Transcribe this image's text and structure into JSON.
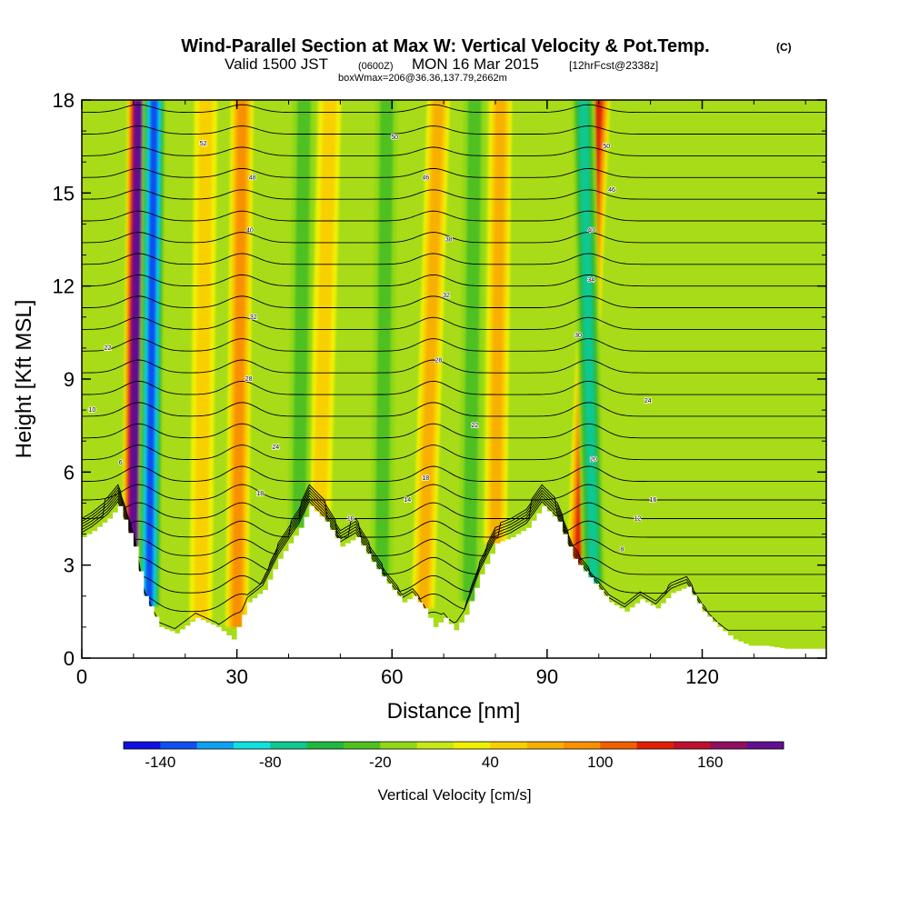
{
  "chart_data": {
    "type": "heatmap",
    "title": "Wind-Parallel Section at Max W: Vertical Velocity & Pot.Temp.",
    "title_suffix": "(C)",
    "subtitle_valid": "Valid 1500 JST",
    "subtitle_utc": "(0600Z)",
    "subtitle_date": "MON 16 Mar 2015",
    "subtitle_fcst": "[12hrFcst@2338z]",
    "subtitle_box": "boxWmax=206@36.36,137.79,2662m",
    "xlabel": "Distance [nm]",
    "ylabel": "Height [Kft MSL]",
    "xlim": [
      0,
      144
    ],
    "ylim": [
      0,
      18
    ],
    "x_ticks": [
      "0",
      "30",
      "60",
      "90",
      "120"
    ],
    "y_ticks": [
      "0",
      "3",
      "6",
      "9",
      "12",
      "15",
      "18"
    ],
    "colorbar_label": "Vertical Velocity [cm/s]",
    "colorbar_ticks": [
      "-140",
      "-80",
      "-20",
      "40",
      "100",
      "160"
    ],
    "colorbar_range": [
      -160,
      200
    ],
    "colorbar_colors": [
      "#1010e0",
      "#1050f0",
      "#10a0f0",
      "#10e0e0",
      "#10c890",
      "#20b840",
      "#50c020",
      "#90d818",
      "#c8e818",
      "#f0f000",
      "#f8d000",
      "#f8b000",
      "#f89000",
      "#f06000",
      "#e02000",
      "#c01030",
      "#901060",
      "#601090"
    ],
    "background_color": "#a8dc18",
    "updraft_bands": [
      {
        "x_top": 11,
        "x_bottom": 10,
        "w": 200
      },
      {
        "x_top": 31,
        "x_bottom": 30,
        "w": 70
      },
      {
        "x_top": 48,
        "x_bottom": 46,
        "w": 40
      },
      {
        "x_top": 69,
        "x_bottom": 66,
        "w": 60
      },
      {
        "x_top": 81,
        "x_bottom": 80,
        "w": 50
      },
      {
        "x_top": 100,
        "x_bottom": 96,
        "w": 120
      },
      {
        "x_top": 24,
        "x_bottom": 23,
        "w": 40
      }
    ],
    "downdraft_bands": [
      {
        "x_top": 14,
        "x_bottom": 13,
        "w": -140
      },
      {
        "x_top": 97,
        "x_bottom": 99,
        "w": -80
      },
      {
        "x_top": 43,
        "x_bottom": 42,
        "w": -30
      },
      {
        "x_top": 76,
        "x_bottom": 75,
        "w": -30
      },
      {
        "x_top": 59,
        "x_bottom": 58,
        "w": -30
      }
    ],
    "terrain_profile": [
      [
        0,
        3.9
      ],
      [
        2,
        4.1
      ],
      [
        5,
        4.5
      ],
      [
        7,
        4.9
      ],
      [
        10,
        3.6
      ],
      [
        12,
        2.0
      ],
      [
        15,
        1.0
      ],
      [
        18,
        0.8
      ],
      [
        22,
        1.3
      ],
      [
        26,
        1.0
      ],
      [
        29,
        0.6
      ],
      [
        32,
        1.8
      ],
      [
        35,
        2.2
      ],
      [
        38,
        3.2
      ],
      [
        42,
        4.2
      ],
      [
        44,
        4.9
      ],
      [
        47,
        4.4
      ],
      [
        50,
        3.6
      ],
      [
        53,
        3.9
      ],
      [
        56,
        3.1
      ],
      [
        59,
        2.4
      ],
      [
        62,
        1.8
      ],
      [
        64,
        2.0
      ],
      [
        66,
        1.6
      ],
      [
        68,
        1.0
      ],
      [
        70,
        1.3
      ],
      [
        72,
        0.9
      ],
      [
        74,
        1.4
      ],
      [
        77,
        2.7
      ],
      [
        80,
        3.7
      ],
      [
        83,
        3.9
      ],
      [
        86,
        4.2
      ],
      [
        89,
        4.9
      ],
      [
        92,
        4.4
      ],
      [
        95,
        3.2
      ],
      [
        99,
        2.4
      ],
      [
        102,
        1.8
      ],
      [
        105,
        1.5
      ],
      [
        108,
        1.9
      ],
      [
        111,
        1.6
      ],
      [
        114,
        2.1
      ],
      [
        117,
        2.3
      ],
      [
        120,
        1.5
      ],
      [
        123,
        1.0
      ],
      [
        126,
        0.6
      ],
      [
        129,
        0.4
      ],
      [
        132,
        0.4
      ],
      [
        136,
        0.3
      ],
      [
        140,
        0.3
      ],
      [
        144,
        0.3
      ]
    ],
    "theta_contours": {
      "levels_surface_kft": [
        0.9,
        1.5,
        2.1,
        2.7,
        3.3,
        3.9,
        4.5,
        5.1,
        5.7,
        6.4,
        7.1,
        7.8,
        8.5,
        9.2,
        9.9,
        10.6,
        11.3,
        12.0,
        12.7,
        13.4,
        14.1,
        14.8,
        15.5,
        16.2,
        16.9,
        17.6
      ],
      "wave_centers_nm": [
        11,
        31,
        68,
        98
      ],
      "wave_amplitude_kft": 0.6,
      "labels": [
        {
          "x": 2,
          "y": 8.0,
          "text": "10"
        },
        {
          "x": 5,
          "y": 10.0,
          "text": "22"
        },
        {
          "x": 7.5,
          "y": 6.3,
          "text": "6"
        },
        {
          "x": 23.5,
          "y": 16.6,
          "text": "52"
        },
        {
          "x": 33,
          "y": 15.5,
          "text": "48"
        },
        {
          "x": 32.5,
          "y": 13.8,
          "text": "40"
        },
        {
          "x": 33.2,
          "y": 11.0,
          "text": "32"
        },
        {
          "x": 32.3,
          "y": 9.0,
          "text": "28"
        },
        {
          "x": 37.5,
          "y": 6.8,
          "text": "24"
        },
        {
          "x": 34.5,
          "y": 5.3,
          "text": "18"
        },
        {
          "x": 52,
          "y": 4.5,
          "text": "10"
        },
        {
          "x": 60.5,
          "y": 16.8,
          "text": "50"
        },
        {
          "x": 66.5,
          "y": 15.5,
          "text": "46"
        },
        {
          "x": 71,
          "y": 13.5,
          "text": "38"
        },
        {
          "x": 70.5,
          "y": 11.7,
          "text": "32"
        },
        {
          "x": 69,
          "y": 9.6,
          "text": "28"
        },
        {
          "x": 76,
          "y": 7.5,
          "text": "22"
        },
        {
          "x": 66.5,
          "y": 5.8,
          "text": "18"
        },
        {
          "x": 63,
          "y": 5.1,
          "text": "14"
        },
        {
          "x": 101.5,
          "y": 16.5,
          "text": "50"
        },
        {
          "x": 102.5,
          "y": 15.1,
          "text": "46"
        },
        {
          "x": 98.5,
          "y": 13.8,
          "text": "40"
        },
        {
          "x": 98.5,
          "y": 12.2,
          "text": "34"
        },
        {
          "x": 96,
          "y": 10.4,
          "text": "30"
        },
        {
          "x": 109.5,
          "y": 8.3,
          "text": "24"
        },
        {
          "x": 99,
          "y": 6.4,
          "text": "20"
        },
        {
          "x": 110.5,
          "y": 5.1,
          "text": "16"
        },
        {
          "x": 107.5,
          "y": 4.5,
          "text": "12"
        },
        {
          "x": 104.5,
          "y": 3.5,
          "text": "8"
        }
      ]
    }
  }
}
